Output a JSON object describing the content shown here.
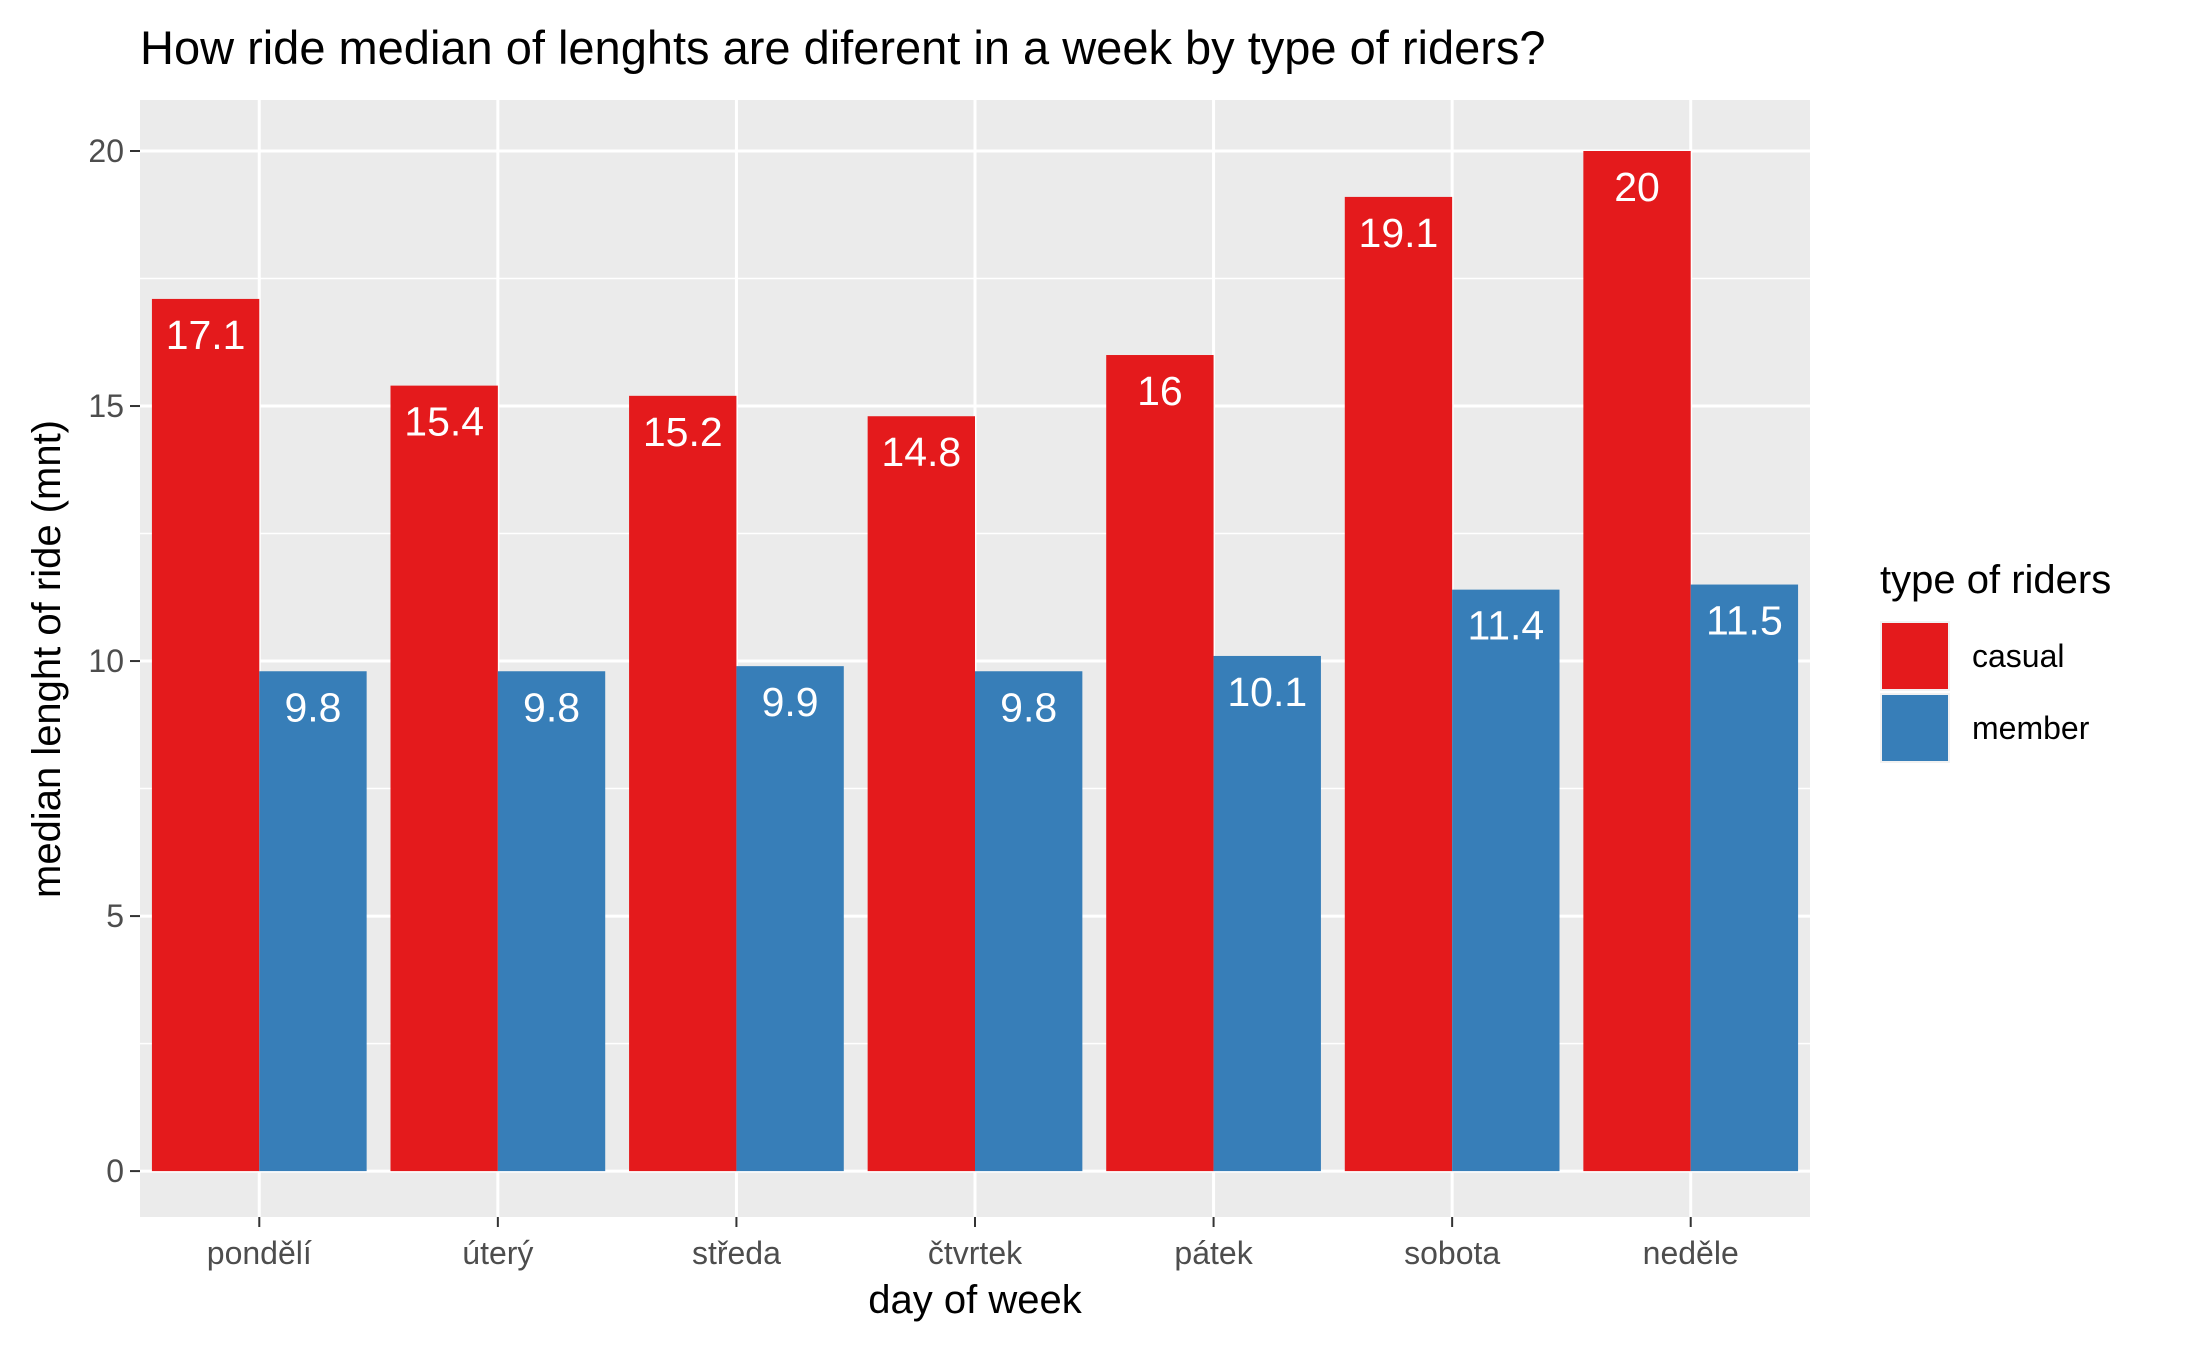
{
  "chart_data": {
    "type": "bar",
    "title": "How ride median of lenghts are diferent in a week by type of riders?",
    "xlabel": "day of week",
    "ylabel": "median lenght of ride (mnt)",
    "categories": [
      "pondělí",
      "úterý",
      "středa",
      "čtvrtek",
      "pátek",
      "sobota",
      "neděle"
    ],
    "series": [
      {
        "name": "casual",
        "color": "#E41A1C",
        "values": [
          17.1,
          15.4,
          15.2,
          14.8,
          16,
          19.1,
          20
        ],
        "labels": [
          "17.1",
          "15.4",
          "15.2",
          "14.8",
          "16",
          "19.1",
          "20"
        ]
      },
      {
        "name": "member",
        "color": "#377EB8",
        "values": [
          9.8,
          9.8,
          9.9,
          9.8,
          10.1,
          11.4,
          11.5
        ],
        "labels": [
          "9.8",
          "9.8",
          "9.9",
          "9.8",
          "10.1",
          "11.4",
          "11.5"
        ]
      }
    ],
    "ylim": [
      -0.9,
      21
    ],
    "yticks": [
      0,
      5,
      10,
      15,
      20
    ],
    "ytick_labels": [
      "0",
      "5",
      "10",
      "15",
      "20"
    ],
    "grid": true,
    "legend": {
      "title": "type of riders",
      "position": "right"
    },
    "panel_background": "#EBEBEB",
    "grid_color": "#FFFFFF"
  }
}
